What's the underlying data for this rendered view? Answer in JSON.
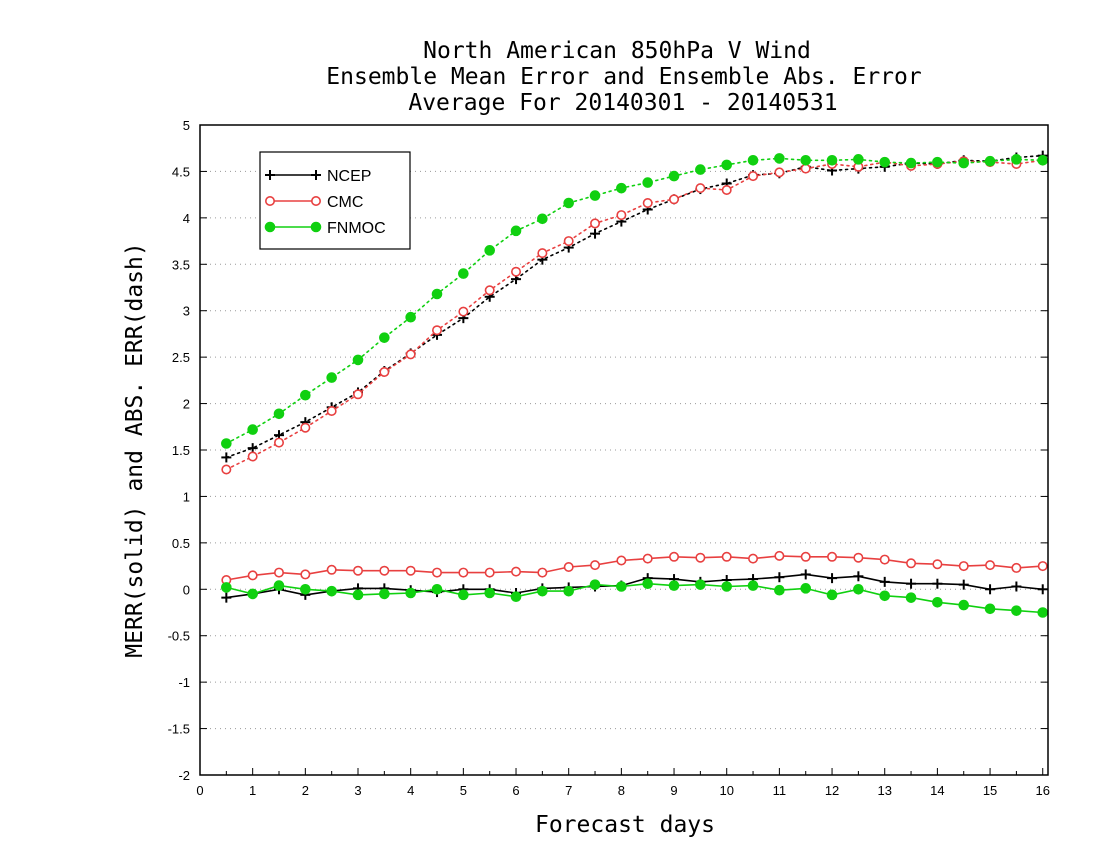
{
  "chart_data": {
    "type": "line",
    "title": [
      "North American 850hPa V Wind",
      "Ensemble Mean Error and Ensemble Abs. Error",
      "Average For 20140301 - 20140531"
    ],
    "xlabel": "Forecast days",
    "ylabel": "MERR(solid) and ABS. ERR(dash)",
    "xlim": [
      0,
      16.1
    ],
    "ylim": [
      -2,
      5
    ],
    "xticks": [
      "0",
      "1",
      "2",
      "3",
      "4",
      "5",
      "6",
      "7",
      "8",
      "9",
      "10",
      "11",
      "12",
      "13",
      "14",
      "15",
      "16"
    ],
    "yticks": [
      "-2",
      "-1.5",
      "-1",
      "-0.5",
      "0",
      "0.5",
      "1",
      "1.5",
      "2",
      "2.5",
      "3",
      "3.5",
      "4",
      "4.5",
      "5"
    ],
    "grid": "horizontal dotted",
    "legend_position": "top-left",
    "x": [
      0.5,
      1,
      1.5,
      2,
      2.5,
      3,
      3.5,
      4,
      4.5,
      5,
      5.5,
      6,
      6.5,
      7,
      7.5,
      8,
      8.5,
      9,
      9.5,
      10,
      10.5,
      11,
      11.5,
      12,
      12.5,
      13,
      13.5,
      14,
      14.5,
      15,
      15.5,
      16
    ],
    "series": [
      {
        "name": "NCEP",
        "color": "#000000",
        "marker": "plus",
        "merr": [
          -0.09,
          -0.05,
          0.0,
          -0.06,
          -0.02,
          0.01,
          0.01,
          -0.01,
          -0.03,
          0.0,
          0.0,
          -0.04,
          0.01,
          0.02,
          0.03,
          0.04,
          0.12,
          0.11,
          0.08,
          0.1,
          0.11,
          0.13,
          0.16,
          0.12,
          0.14,
          0.08,
          0.06,
          0.06,
          0.05,
          0.0,
          0.03,
          0.0
        ],
        "abs_err": [
          1.42,
          1.52,
          1.66,
          1.8,
          1.96,
          2.12,
          2.35,
          2.54,
          2.74,
          2.92,
          3.15,
          3.34,
          3.55,
          3.68,
          3.83,
          3.96,
          4.09,
          4.2,
          4.31,
          4.37,
          4.46,
          4.48,
          4.55,
          4.51,
          4.53,
          4.55,
          4.59,
          4.58,
          4.62,
          4.61,
          4.65,
          4.67
        ]
      },
      {
        "name": "CMC",
        "color": "#e84040",
        "marker": "open-circle",
        "merr": [
          0.1,
          0.15,
          0.18,
          0.16,
          0.21,
          0.2,
          0.2,
          0.2,
          0.18,
          0.18,
          0.18,
          0.19,
          0.18,
          0.24,
          0.26,
          0.31,
          0.33,
          0.35,
          0.34,
          0.35,
          0.33,
          0.36,
          0.35,
          0.35,
          0.34,
          0.32,
          0.28,
          0.27,
          0.25,
          0.26,
          0.23,
          0.25
        ],
        "abs_err": [
          1.29,
          1.43,
          1.58,
          1.74,
          1.92,
          2.1,
          2.34,
          2.53,
          2.79,
          2.99,
          3.22,
          3.42,
          3.62,
          3.75,
          3.94,
          4.03,
          4.16,
          4.2,
          4.32,
          4.3,
          4.45,
          4.49,
          4.53,
          4.58,
          4.55,
          4.6,
          4.56,
          4.58,
          4.61,
          4.6,
          4.58,
          4.62
        ]
      },
      {
        "name": "FNMOC",
        "color": "#10d010",
        "marker": "filled-circle",
        "merr": [
          0.02,
          -0.05,
          0.04,
          0.0,
          -0.02,
          -0.06,
          -0.05,
          -0.04,
          0.0,
          -0.06,
          -0.04,
          -0.08,
          -0.02,
          -0.02,
          0.05,
          0.03,
          0.06,
          0.04,
          0.05,
          0.03,
          0.04,
          -0.01,
          0.01,
          -0.06,
          0.0,
          -0.07,
          -0.09,
          -0.14,
          -0.17,
          -0.21,
          -0.23,
          -0.25
        ],
        "abs_err": [
          1.57,
          1.72,
          1.89,
          2.09,
          2.28,
          2.47,
          2.71,
          2.93,
          3.18,
          3.4,
          3.65,
          3.86,
          3.99,
          4.16,
          4.24,
          4.32,
          4.38,
          4.45,
          4.52,
          4.57,
          4.62,
          4.64,
          4.62,
          4.62,
          4.63,
          4.6,
          4.59,
          4.6,
          4.59,
          4.61,
          4.63,
          4.62
        ]
      }
    ]
  }
}
